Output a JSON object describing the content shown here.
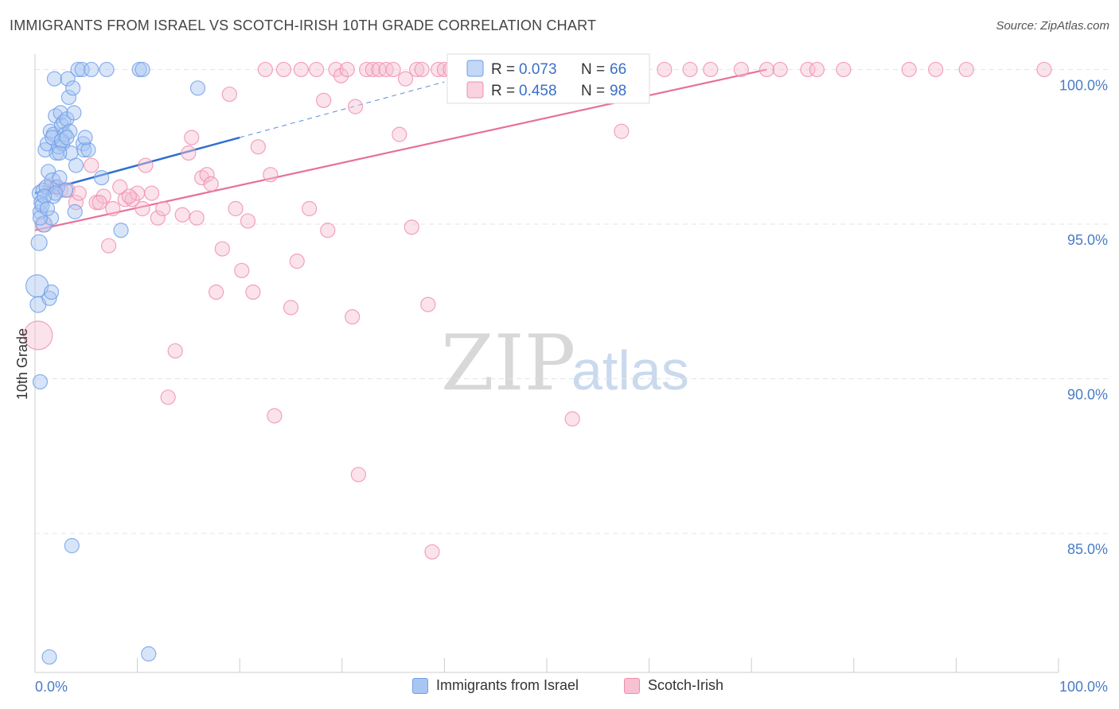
{
  "title": "IMMIGRANTS FROM ISRAEL VS SCOTCH-IRISH 10TH GRADE CORRELATION CHART",
  "source": "Source: ZipAtlas.com",
  "watermark": {
    "zip": "ZIP",
    "atlas": "atlas"
  },
  "colors": {
    "blue": "#6e9ee8",
    "blue_fill": "#a9c6f2",
    "blue_line": "#2f6fd0",
    "pink": "#f08cab",
    "pink_fill": "#f7c1d2",
    "pink_line": "#e8709a",
    "grid": "#e4e4e4",
    "axis_text": "#4a7cc7"
  },
  "legend_stats": [
    {
      "r_label": "R = ",
      "r_value": "0.073",
      "n_label": "N = ",
      "n_value": "66"
    },
    {
      "r_label": "R = ",
      "r_value": "0.458",
      "n_label": "N = ",
      "n_value": "98"
    }
  ],
  "bottom_legend": [
    {
      "label": "Immigrants from Israel"
    },
    {
      "label": "Scotch-Irish"
    }
  ],
  "chart_data": {
    "type": "scatter",
    "title": "IMMIGRANTS FROM ISRAEL VS SCOTCH-IRISH 10TH GRADE CORRELATION CHART",
    "xlabel": "",
    "ylabel": "10th Grade",
    "xlim": [
      0,
      100
    ],
    "ylim": [
      80.5,
      100.5
    ],
    "x_tick_labels": [
      "0.0%",
      "100.0%"
    ],
    "y_ticks": [
      85,
      90,
      95,
      100
    ],
    "y_tick_labels": [
      "85.0%",
      "90.0%",
      "95.0%",
      "100.0%"
    ],
    "grid": true,
    "series": [
      {
        "name": "Immigrants from Israel",
        "r": 0.073,
        "n": 66,
        "trend": {
          "x0": 0,
          "y0": 96.0,
          "x1": 20,
          "y1": 97.8,
          "dashed_to_x": 40,
          "dashed_to_y": 99.6
        },
        "points": [
          [
            0.2,
            93.0,
            14
          ],
          [
            0.3,
            92.4,
            10
          ],
          [
            0.4,
            94.4,
            10
          ],
          [
            0.5,
            89.9,
            9
          ],
          [
            0.5,
            95.4,
            9
          ],
          [
            0.5,
            96.0,
            10
          ],
          [
            0.6,
            95.7,
            9
          ],
          [
            0.8,
            96.1,
            9
          ],
          [
            0.9,
            95.0,
            10
          ],
          [
            1.0,
            97.4,
            9
          ],
          [
            1.2,
            97.6,
            9
          ],
          [
            1.3,
            96.7,
            9
          ],
          [
            1.4,
            92.6,
            9
          ],
          [
            1.5,
            98.0,
            9
          ],
          [
            1.6,
            92.8,
            9
          ],
          [
            1.6,
            95.2,
            9
          ],
          [
            1.7,
            96.4,
            10
          ],
          [
            1.8,
            97.9,
            9
          ],
          [
            1.8,
            95.9,
            9
          ],
          [
            1.9,
            99.7,
            9
          ],
          [
            2.0,
            98.5,
            9
          ],
          [
            2.1,
            97.3,
            9
          ],
          [
            2.2,
            96.2,
            9
          ],
          [
            2.3,
            97.5,
            9
          ],
          [
            2.4,
            96.5,
            9
          ],
          [
            2.5,
            98.6,
            9
          ],
          [
            2.6,
            98.2,
            9
          ],
          [
            2.7,
            97.6,
            9
          ],
          [
            2.8,
            98.3,
            9
          ],
          [
            2.9,
            97.9,
            9
          ],
          [
            3.0,
            96.1,
            9
          ],
          [
            3.1,
            98.4,
            9
          ],
          [
            3.2,
            99.7,
            9
          ],
          [
            3.3,
            99.1,
            9
          ],
          [
            3.4,
            98.0,
            9
          ],
          [
            3.5,
            97.3,
            9
          ],
          [
            3.6,
            84.6,
            9
          ],
          [
            3.7,
            99.4,
            9
          ],
          [
            3.8,
            98.6,
            9
          ],
          [
            3.9,
            95.4,
            9
          ],
          [
            4.0,
            96.9,
            9
          ],
          [
            4.2,
            100.0,
            9
          ],
          [
            4.6,
            100.0,
            9
          ],
          [
            4.7,
            97.6,
            9
          ],
          [
            4.8,
            97.4,
            9
          ],
          [
            5.2,
            97.4,
            9
          ],
          [
            5.5,
            100.0,
            9
          ],
          [
            6.5,
            96.5,
            9
          ],
          [
            7.0,
            100.0,
            9
          ],
          [
            8.4,
            94.8,
            9
          ],
          [
            10.2,
            100.0,
            9
          ],
          [
            10.5,
            100.0,
            9
          ],
          [
            11.1,
            81.1,
            9
          ],
          [
            15.9,
            99.4,
            9
          ],
          [
            1.4,
            81.0,
            9
          ],
          [
            0.7,
            95.6,
            9
          ],
          [
            1.1,
            96.2,
            9
          ],
          [
            2.0,
            96.0,
            9
          ],
          [
            2.4,
            97.3,
            9
          ],
          [
            0.9,
            95.9,
            9
          ],
          [
            1.7,
            97.8,
            9
          ],
          [
            2.6,
            97.7,
            9
          ],
          [
            4.9,
            97.8,
            9
          ],
          [
            0.5,
            95.2,
            9
          ],
          [
            1.2,
            95.5,
            9
          ],
          [
            3.1,
            97.8,
            9
          ]
        ]
      },
      {
        "name": "Scotch-Irish",
        "r": 0.458,
        "n": 98,
        "trend": {
          "x0": 0,
          "y0": 94.8,
          "x1": 71.5,
          "y1": 100.0
        },
        "points": [
          [
            0.3,
            91.4,
            18
          ],
          [
            0.8,
            95.0,
            10
          ],
          [
            1.5,
            96.2,
            9
          ],
          [
            2.0,
            96.2,
            9
          ],
          [
            2.5,
            96.1,
            9
          ],
          [
            3.2,
            96.1,
            9
          ],
          [
            4.0,
            95.7,
            9
          ],
          [
            5.5,
            96.9,
            9
          ],
          [
            6.0,
            95.7,
            9
          ],
          [
            6.7,
            95.9,
            9
          ],
          [
            7.2,
            94.3,
            9
          ],
          [
            7.6,
            95.5,
            9
          ],
          [
            8.3,
            96.2,
            9
          ],
          [
            8.8,
            95.8,
            9
          ],
          [
            9.5,
            95.8,
            9
          ],
          [
            10.0,
            96.0,
            9
          ],
          [
            10.5,
            95.5,
            9
          ],
          [
            10.8,
            96.9,
            9
          ],
          [
            11.4,
            96.0,
            9
          ],
          [
            12.0,
            95.2,
            9
          ],
          [
            12.5,
            95.5,
            9
          ],
          [
            13.0,
            89.4,
            9
          ],
          [
            13.7,
            90.9,
            9
          ],
          [
            14.4,
            95.3,
            9
          ],
          [
            15.0,
            97.3,
            9
          ],
          [
            15.3,
            97.8,
            9
          ],
          [
            15.8,
            95.2,
            9
          ],
          [
            16.3,
            96.5,
            9
          ],
          [
            16.8,
            96.6,
            9
          ],
          [
            17.2,
            96.3,
            9
          ],
          [
            17.7,
            92.8,
            9
          ],
          [
            18.3,
            94.2,
            9
          ],
          [
            19.0,
            99.2,
            9
          ],
          [
            19.6,
            95.5,
            9
          ],
          [
            20.2,
            93.5,
            9
          ],
          [
            20.8,
            95.1,
            9
          ],
          [
            21.3,
            92.8,
            9
          ],
          [
            21.8,
            97.5,
            9
          ],
          [
            22.5,
            100.0,
            9
          ],
          [
            23.0,
            96.6,
            9
          ],
          [
            23.4,
            88.8,
            9
          ],
          [
            24.3,
            100.0,
            9
          ],
          [
            25.0,
            92.3,
            9
          ],
          [
            25.6,
            93.8,
            9
          ],
          [
            26.0,
            100.0,
            9
          ],
          [
            26.8,
            95.5,
            9
          ],
          [
            27.5,
            100.0,
            9
          ],
          [
            28.2,
            99.0,
            9
          ],
          [
            28.6,
            94.8,
            9
          ],
          [
            29.4,
            100.0,
            9
          ],
          [
            29.9,
            99.8,
            9
          ],
          [
            30.5,
            100.0,
            9
          ],
          [
            31.0,
            92.0,
            9
          ],
          [
            31.3,
            98.8,
            9
          ],
          [
            31.6,
            86.9,
            9
          ],
          [
            32.4,
            100.0,
            9
          ],
          [
            33.0,
            100.0,
            9
          ],
          [
            33.6,
            100.0,
            9
          ],
          [
            34.3,
            100.0,
            9
          ],
          [
            35.0,
            100.0,
            9
          ],
          [
            35.6,
            97.9,
            9
          ],
          [
            36.2,
            99.7,
            9
          ],
          [
            36.8,
            94.9,
            9
          ],
          [
            37.3,
            100.0,
            9
          ],
          [
            37.8,
            100.0,
            9
          ],
          [
            38.4,
            92.4,
            9
          ],
          [
            38.8,
            84.4,
            9
          ],
          [
            39.4,
            100.0,
            9
          ],
          [
            40.0,
            100.0,
            9
          ],
          [
            40.6,
            100.0,
            9
          ],
          [
            41.2,
            100.0,
            9
          ],
          [
            42.0,
            100.0,
            9
          ],
          [
            43.0,
            100.0,
            9
          ],
          [
            44.5,
            100.0,
            9
          ],
          [
            46.0,
            100.0,
            9
          ],
          [
            47.5,
            100.0,
            9
          ],
          [
            49.0,
            100.0,
            9
          ],
          [
            50.0,
            100.0,
            9
          ],
          [
            52.5,
            88.7,
            9
          ],
          [
            55.0,
            100.0,
            9
          ],
          [
            57.3,
            98.0,
            9
          ],
          [
            59.0,
            100.0,
            9
          ],
          [
            61.5,
            100.0,
            9
          ],
          [
            64.0,
            100.0,
            9
          ],
          [
            66.0,
            100.0,
            9
          ],
          [
            69.0,
            100.0,
            9
          ],
          [
            71.5,
            100.0,
            9
          ],
          [
            72.8,
            100.0,
            9
          ],
          [
            75.5,
            100.0,
            9
          ],
          [
            76.4,
            100.0,
            9
          ],
          [
            79.0,
            100.0,
            9
          ],
          [
            85.4,
            100.0,
            9
          ],
          [
            88.0,
            100.0,
            9
          ],
          [
            91.0,
            100.0,
            9
          ],
          [
            98.6,
            100.0,
            9
          ],
          [
            9.2,
            95.9,
            9
          ],
          [
            6.3,
            95.7,
            9
          ],
          [
            4.3,
            96.0,
            9
          ]
        ]
      }
    ]
  }
}
